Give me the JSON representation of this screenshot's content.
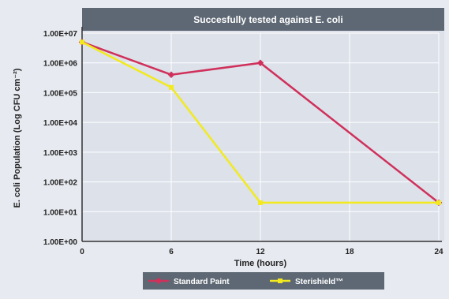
{
  "chart_data": {
    "type": "line",
    "title": "Succesfully tested against E. coli",
    "xlabel": "Time (hours)",
    "ylabel": "E. coli Population (Log CFU cm⁻²)",
    "x": [
      0,
      6,
      12,
      24
    ],
    "xlim": [
      0,
      24
    ],
    "xticks": [
      0,
      6,
      12,
      18,
      24
    ],
    "ylim": [
      1,
      10000000
    ],
    "yscale": "log",
    "yticks": [
      {
        "value": 1,
        "label": "1.00E+00"
      },
      {
        "value": 10,
        "label": "1.00E+01"
      },
      {
        "value": 100,
        "label": "1.00E+02"
      },
      {
        "value": 1000,
        "label": "1.00E+03"
      },
      {
        "value": 10000,
        "label": "1.00E+04"
      },
      {
        "value": 100000,
        "label": "1.00E+05"
      },
      {
        "value": 1000000,
        "label": "1.00E+06"
      },
      {
        "value": 10000000,
        "label": "1.00E+07"
      }
    ],
    "grid": true,
    "legend_position": "bottom",
    "series": [
      {
        "name": "Standard Paint",
        "color": "#d0305a",
        "values": [
          5000000,
          400000,
          1000000,
          20
        ]
      },
      {
        "name": "Sterishield™",
        "color": "#f2ea1e",
        "values": [
          5000000,
          150000,
          20,
          20
        ]
      }
    ]
  }
}
